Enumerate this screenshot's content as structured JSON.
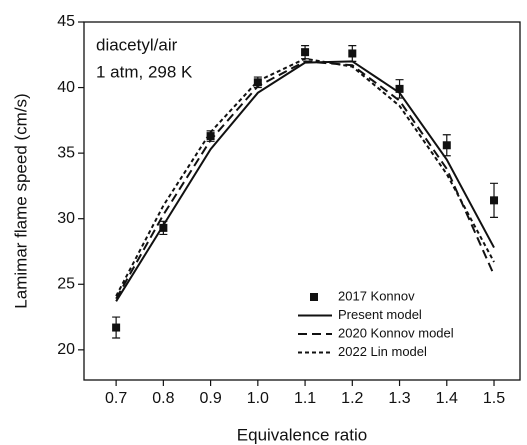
{
  "chart_data": {
    "type": "line",
    "annotations": [
      "diacetyl/air",
      "1 atm, 298 K"
    ],
    "x_label": "Equivalence ratio",
    "y_label": "Lamimar flame speed (cm/s)",
    "x": [
      0.7,
      0.8,
      0.9,
      1.0,
      1.1,
      1.2,
      1.3,
      1.4,
      1.5
    ],
    "series": [
      {
        "name": "2017 Konnov",
        "color": "#111111",
        "mode": "markers",
        "values": [
          21.7,
          29.3,
          36.3,
          40.4,
          42.7,
          42.6,
          39.9,
          35.6,
          31.4
        ],
        "errors": [
          0.8,
          0.5,
          0.4,
          0.4,
          0.5,
          0.6,
          0.7,
          0.8,
          1.3
        ]
      },
      {
        "name": "Present model",
        "color": "#111111",
        "mode": "lines",
        "dash": "solid",
        "values": [
          23.7,
          29.5,
          35.3,
          39.6,
          41.9,
          42.0,
          39.6,
          34.5,
          27.8
        ]
      },
      {
        "name": "2020 Konnov model",
        "color": "#111111",
        "mode": "lines",
        "dash": "dashed",
        "values": [
          23.9,
          30.3,
          36.0,
          40.1,
          42.0,
          41.7,
          39.0,
          33.8,
          25.7
        ]
      },
      {
        "name": "2022 Lin model",
        "color": "#111111",
        "mode": "lines",
        "dash": "dotted",
        "values": [
          24.1,
          31.0,
          36.6,
          40.5,
          42.2,
          41.6,
          38.6,
          33.4,
          26.7
        ]
      }
    ],
    "xlim": [
      0.632,
      1.555
    ],
    "xticks": [
      0.7,
      0.8,
      0.9,
      {
        "value": 1,
        "label": "1.0"
      },
      1.1,
      1.2,
      1.3,
      1.4,
      1.5
    ],
    "ylim": [
      17.7,
      45
    ],
    "yticks": [
      20,
      25,
      30,
      35,
      40,
      45
    ],
    "grid": false,
    "legend": "lower right"
  }
}
